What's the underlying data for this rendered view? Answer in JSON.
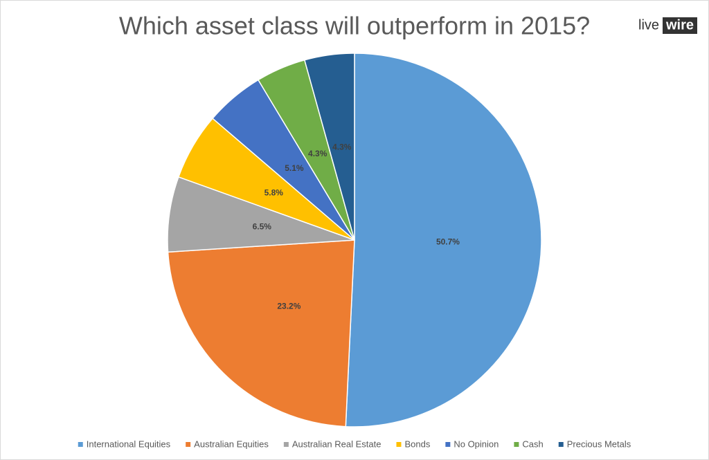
{
  "chart_data": {
    "type": "pie",
    "title": "Which asset class will outperform in 2015?",
    "logo": [
      "live",
      "wire"
    ],
    "categories": [
      "International Equities",
      "Australian Equities",
      "Australian Real Estate",
      "Bonds",
      "No Opinion",
      "Cash",
      "Precious Metals"
    ],
    "values": [
      50.7,
      23.2,
      6.5,
      5.8,
      5.1,
      4.3,
      4.3
    ],
    "value_labels": [
      "50.7%",
      "23.2%",
      "6.5%",
      "5.8%",
      "5.1%",
      "4.3%",
      "4.3%"
    ],
    "colors": [
      "#5b9bd5",
      "#ed7d31",
      "#a5a5a5",
      "#ffc000",
      "#4472c4",
      "#70ad47",
      "#255e91"
    ],
    "legend": "bottom"
  }
}
